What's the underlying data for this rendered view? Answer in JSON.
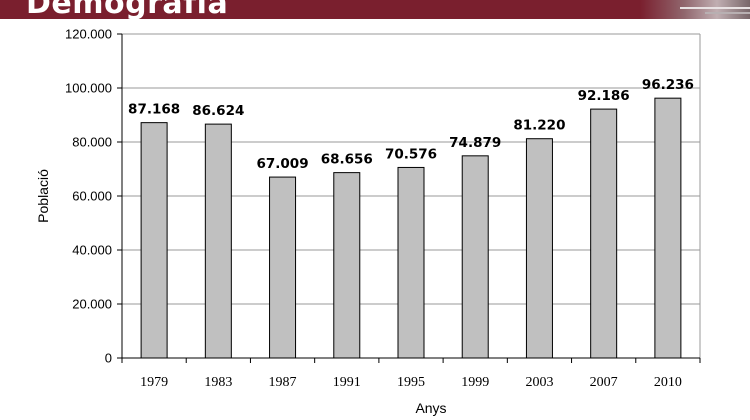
{
  "header": {
    "title": "Demografia"
  },
  "chart_data": {
    "type": "bar",
    "categories": [
      "1979",
      "1983",
      "1987",
      "1991",
      "1995",
      "1999",
      "2003",
      "2007",
      "2010"
    ],
    "values": [
      87168,
      86624,
      67009,
      68656,
      70576,
      74879,
      81220,
      92186,
      96236
    ],
    "data_labels": [
      "87.168",
      "86.624",
      "67.009",
      "68.656",
      "70.576",
      "74.879",
      "81.220",
      "92.186",
      "96.236"
    ],
    "yticks": [
      0,
      20000,
      40000,
      60000,
      80000,
      100000,
      120000
    ],
    "ytick_labels": [
      "0",
      "20.000",
      "40.000",
      "60.000",
      "80.000",
      "100.000",
      "120.000"
    ],
    "ylim": [
      0,
      120000
    ],
    "xlabel": "Anys",
    "ylabel": "Població",
    "grid": true,
    "legend": "none",
    "bar_color": "#c0c0c0",
    "bar_edge_color": "#000000"
  },
  "colors": {
    "banner": "#7a1f2e",
    "gridline": "#9a9a9a"
  }
}
